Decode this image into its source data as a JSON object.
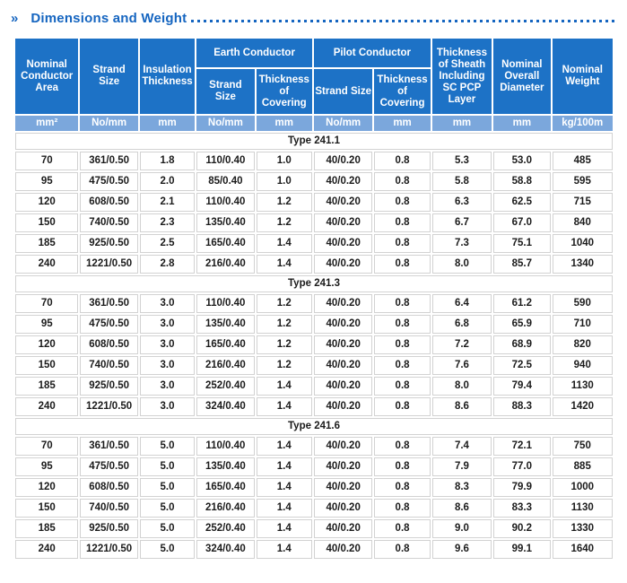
{
  "title": {
    "marker": "»",
    "text": "Dimensions and Weight"
  },
  "colors": {
    "header_bg": "#1d72c6",
    "units_bg": "#7ba7dc",
    "title": "#1565c0",
    "border": "#d2d2d2"
  },
  "table": {
    "headers": {
      "nominal_conductor_area": "Nominal Conductor Area",
      "strand_size": "Strand Size",
      "insulation_thickness": "Insulation Thickness",
      "earth_conductor": "Earth Conductor",
      "pilot_conductor": "Pilot Conductor",
      "earth_strand_size": "Strand Size",
      "earth_thickness_of_covering": "Thickness of Covering",
      "pilot_strand_size": "Strand Size",
      "pilot_thickness_of_covering": "Thickness of Covering",
      "thickness_of_sheath": "Thickness of Sheath Including SC PCP Layer",
      "nominal_overall_diameter": "Nominal Overall Diameter",
      "nominal_weight": "Nominal Weight"
    },
    "units": [
      "mm²",
      "No/mm",
      "mm",
      "No/mm",
      "mm",
      "No/mm",
      "mm",
      "mm",
      "mm",
      "kg/100m"
    ],
    "sections": [
      {
        "type_label": "Type 241.1",
        "rows": [
          [
            "70",
            "361/0.50",
            "1.8",
            "110/0.40",
            "1.0",
            "40/0.20",
            "0.8",
            "5.3",
            "53.0",
            "485"
          ],
          [
            "95",
            "475/0.50",
            "2.0",
            "85/0.40",
            "1.0",
            "40/0.20",
            "0.8",
            "5.8",
            "58.8",
            "595"
          ],
          [
            "120",
            "608/0.50",
            "2.1",
            "110/0.40",
            "1.2",
            "40/0.20",
            "0.8",
            "6.3",
            "62.5",
            "715"
          ],
          [
            "150",
            "740/0.50",
            "2.3",
            "135/0.40",
            "1.2",
            "40/0.20",
            "0.8",
            "6.7",
            "67.0",
            "840"
          ],
          [
            "185",
            "925/0.50",
            "2.5",
            "165/0.40",
            "1.4",
            "40/0.20",
            "0.8",
            "7.3",
            "75.1",
            "1040"
          ],
          [
            "240",
            "1221/0.50",
            "2.8",
            "216/0.40",
            "1.4",
            "40/0.20",
            "0.8",
            "8.0",
            "85.7",
            "1340"
          ]
        ]
      },
      {
        "type_label": "Type 241.3",
        "rows": [
          [
            "70",
            "361/0.50",
            "3.0",
            "110/0.40",
            "1.2",
            "40/0.20",
            "0.8",
            "6.4",
            "61.2",
            "590"
          ],
          [
            "95",
            "475/0.50",
            "3.0",
            "135/0.40",
            "1.2",
            "40/0.20",
            "0.8",
            "6.8",
            "65.9",
            "710"
          ],
          [
            "120",
            "608/0.50",
            "3.0",
            "165/0.40",
            "1.2",
            "40/0.20",
            "0.8",
            "7.2",
            "68.9",
            "820"
          ],
          [
            "150",
            "740/0.50",
            "3.0",
            "216/0.40",
            "1.2",
            "40/0.20",
            "0.8",
            "7.6",
            "72.5",
            "940"
          ],
          [
            "185",
            "925/0.50",
            "3.0",
            "252/0.40",
            "1.4",
            "40/0.20",
            "0.8",
            "8.0",
            "79.4",
            "1130"
          ],
          [
            "240",
            "1221/0.50",
            "3.0",
            "324/0.40",
            "1.4",
            "40/0.20",
            "0.8",
            "8.6",
            "88.3",
            "1420"
          ]
        ]
      },
      {
        "type_label": "Type 241.6",
        "rows": [
          [
            "70",
            "361/0.50",
            "5.0",
            "110/0.40",
            "1.4",
            "40/0.20",
            "0.8",
            "7.4",
            "72.1",
            "750"
          ],
          [
            "95",
            "475/0.50",
            "5.0",
            "135/0.40",
            "1.4",
            "40/0.20",
            "0.8",
            "7.9",
            "77.0",
            "885"
          ],
          [
            "120",
            "608/0.50",
            "5.0",
            "165/0.40",
            "1.4",
            "40/0.20",
            "0.8",
            "8.3",
            "79.9",
            "1000"
          ],
          [
            "150",
            "740/0.50",
            "5.0",
            "216/0.40",
            "1.4",
            "40/0.20",
            "0.8",
            "8.6",
            "83.3",
            "1130"
          ],
          [
            "185",
            "925/0.50",
            "5.0",
            "252/0.40",
            "1.4",
            "40/0.20",
            "0.8",
            "9.0",
            "90.2",
            "1330"
          ],
          [
            "240",
            "1221/0.50",
            "5.0",
            "324/0.40",
            "1.4",
            "40/0.20",
            "0.8",
            "9.6",
            "99.1",
            "1640"
          ]
        ]
      }
    ]
  }
}
